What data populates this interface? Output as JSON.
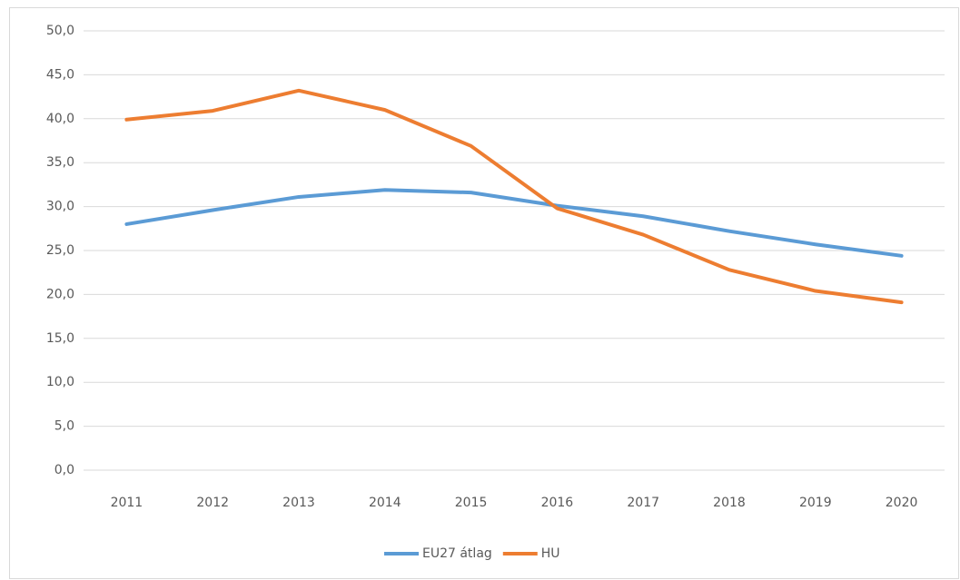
{
  "chart_data": {
    "type": "line",
    "categories": [
      "2011",
      "2012",
      "2013",
      "2014",
      "2015",
      "2016",
      "2017",
      "2018",
      "2019",
      "2020"
    ],
    "series": [
      {
        "name": "EU27 átlag",
        "color": "#5b9bd5",
        "values": [
          28.0,
          29.6,
          31.1,
          31.9,
          31.6,
          30.1,
          28.9,
          27.2,
          25.7,
          24.4
        ]
      },
      {
        "name": "HU",
        "color": "#ed7d31",
        "values": [
          39.9,
          40.9,
          43.2,
          41.0,
          36.9,
          29.8,
          26.8,
          22.8,
          20.4,
          19.1
        ]
      }
    ],
    "ylim": [
      0,
      50
    ],
    "yticks": [
      {
        "value": 0,
        "label": "0,0"
      },
      {
        "value": 5,
        "label": "5,0"
      },
      {
        "value": 10,
        "label": "10,0"
      },
      {
        "value": 15,
        "label": "15,0"
      },
      {
        "value": 20,
        "label": "20,0"
      },
      {
        "value": 25,
        "label": "25,0"
      },
      {
        "value": 30,
        "label": "30,0"
      },
      {
        "value": 35,
        "label": "35,0"
      },
      {
        "value": 40,
        "label": "40,0"
      },
      {
        "value": 45,
        "label": "45,0"
      },
      {
        "value": 50,
        "label": "50,0"
      }
    ],
    "grid": true,
    "legend": "bottom"
  }
}
